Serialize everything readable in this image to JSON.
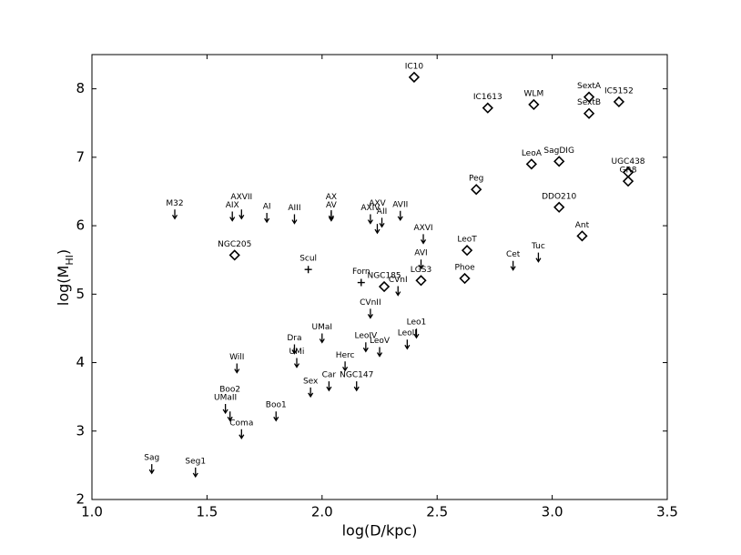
{
  "chart_data": {
    "type": "scatter",
    "xlabel": "log(D/kpc)",
    "ylabel": [
      "log(M",
      "HI",
      ")"
    ],
    "xlim": [
      1,
      3.5
    ],
    "ylim": [
      2,
      8.5
    ],
    "xticks": [
      {
        "value": 1,
        "label": "1.0"
      },
      {
        "value": 1.5,
        "label": "1.5"
      },
      {
        "value": 2,
        "label": "2.0"
      },
      {
        "value": 2.5,
        "label": "2.5"
      },
      {
        "value": 3,
        "label": "3.0"
      },
      {
        "value": 3.5,
        "label": "3.5"
      }
    ],
    "yticks": [
      2,
      3,
      4,
      5,
      6,
      7,
      8
    ],
    "color": "#000000",
    "points": [
      {
        "label": "IC10",
        "x": 2.4,
        "y": 8.17,
        "marker": "diamond"
      },
      {
        "label": "IC1613",
        "x": 2.72,
        "y": 7.72,
        "marker": "diamond"
      },
      {
        "label": "WLM",
        "x": 2.92,
        "y": 7.77,
        "marker": "diamond"
      },
      {
        "label": "SextA",
        "x": 3.16,
        "y": 7.88,
        "marker": "diamond"
      },
      {
        "label": "SextB",
        "x": 3.16,
        "y": 7.64,
        "marker": "diamond"
      },
      {
        "label": "IC5152",
        "x": 3.29,
        "y": 7.81,
        "marker": "diamond"
      },
      {
        "label": "LeoA",
        "x": 2.91,
        "y": 6.9,
        "marker": "diamond"
      },
      {
        "label": "SagDIG",
        "x": 3.03,
        "y": 6.94,
        "marker": "diamond"
      },
      {
        "label": "UGC438",
        "x": 3.33,
        "y": 6.78,
        "marker": "diamond"
      },
      {
        "label": "GR8",
        "x": 3.33,
        "y": 6.65,
        "marker": "diamond"
      },
      {
        "label": "Peg",
        "x": 2.67,
        "y": 6.53,
        "marker": "diamond"
      },
      {
        "label": "DDO210",
        "x": 3.03,
        "y": 6.27,
        "marker": "diamond"
      },
      {
        "label": "Ant",
        "x": 3.13,
        "y": 5.85,
        "marker": "diamond"
      },
      {
        "label": "NGC205",
        "x": 1.62,
        "y": 5.57,
        "marker": "diamond"
      },
      {
        "label": "LeoT",
        "x": 2.63,
        "y": 5.64,
        "marker": "diamond"
      },
      {
        "label": "Phoe",
        "x": 2.62,
        "y": 5.23,
        "marker": "diamond"
      },
      {
        "label": "LGS3",
        "x": 2.43,
        "y": 5.2,
        "marker": "diamond"
      },
      {
        "label": "NGC185",
        "x": 2.27,
        "y": 5.11,
        "marker": "diamond"
      },
      {
        "label": "Scul",
        "x": 1.94,
        "y": 5.36,
        "marker": "plus"
      },
      {
        "label": "Forn",
        "x": 2.17,
        "y": 5.17,
        "marker": "plus"
      },
      {
        "label": "M32",
        "x": 1.36,
        "y": 6.17,
        "marker": "limit"
      },
      {
        "label": "AIX",
        "x": 1.61,
        "y": 6.14,
        "marker": "limit"
      },
      {
        "label": "AXVII",
        "x": 1.65,
        "y": 6.17,
        "marker": "limit"
      },
      {
        "label": "AI",
        "x": 1.76,
        "y": 6.12,
        "marker": "limit"
      },
      {
        "label": "AIII",
        "x": 1.88,
        "y": 6.1,
        "marker": "limit"
      },
      {
        "label": "AV",
        "x": 2.04,
        "y": 6.14,
        "marker": "limit"
      },
      {
        "label": "AX",
        "x": 2.04,
        "y": 6.16,
        "marker": "limit"
      },
      {
        "label": "AXIV",
        "x": 2.21,
        "y": 6.1,
        "marker": "limit"
      },
      {
        "label": "AII",
        "x": 2.26,
        "y": 6.05,
        "marker": "limit"
      },
      {
        "label": "AXV",
        "x": 2.24,
        "y": 5.96,
        "marker": "limit"
      },
      {
        "label": "AVII",
        "x": 2.34,
        "y": 6.15,
        "marker": "limit"
      },
      {
        "label": "AXVI",
        "x": 2.44,
        "y": 5.81,
        "marker": "limit"
      },
      {
        "label": "AVI",
        "x": 2.43,
        "y": 5.44,
        "marker": "limit"
      },
      {
        "label": "CVnI",
        "x": 2.33,
        "y": 5.05,
        "marker": "limit"
      },
      {
        "label": "Cet",
        "x": 2.83,
        "y": 5.42,
        "marker": "limit"
      },
      {
        "label": "Tuc",
        "x": 2.94,
        "y": 5.54,
        "marker": "limit"
      },
      {
        "label": "CVnII",
        "x": 2.21,
        "y": 4.72,
        "marker": "limit"
      },
      {
        "label": "UMaI",
        "x": 2.0,
        "y": 4.36,
        "marker": "limit"
      },
      {
        "label": "Dra",
        "x": 1.88,
        "y": 4.2,
        "marker": "limit"
      },
      {
        "label": "UMi",
        "x": 1.89,
        "y": 4.0,
        "marker": "limit"
      },
      {
        "label": "LeoIV",
        "x": 2.19,
        "y": 4.23,
        "marker": "limit"
      },
      {
        "label": "LeoV",
        "x": 2.25,
        "y": 4.16,
        "marker": "limit"
      },
      {
        "label": "Leo1",
        "x": 2.41,
        "y": 4.43,
        "marker": "limit"
      },
      {
        "label": "LeoII",
        "x": 2.37,
        "y": 4.27,
        "marker": "limit"
      },
      {
        "label": "Herc",
        "x": 2.1,
        "y": 3.95,
        "marker": "limit"
      },
      {
        "label": "WilI",
        "x": 1.63,
        "y": 3.92,
        "marker": "limit"
      },
      {
        "label": "Sex",
        "x": 1.95,
        "y": 3.57,
        "marker": "limit"
      },
      {
        "label": "Car",
        "x": 2.03,
        "y": 3.66,
        "marker": "limit"
      },
      {
        "label": "NGC147",
        "x": 2.15,
        "y": 3.66,
        "marker": "limit"
      },
      {
        "label": "UMaII",
        "x": 1.58,
        "y": 3.33,
        "marker": "limit"
      },
      {
        "label": "Boo2",
        "x": 1.6,
        "y": 3.22,
        "marker": "limit"
      },
      {
        "label": "Boo1",
        "x": 1.8,
        "y": 3.22,
        "marker": "limit"
      },
      {
        "label": "Coma",
        "x": 1.65,
        "y": 2.96,
        "marker": "limit"
      },
      {
        "label": "Sag",
        "x": 1.26,
        "y": 2.45,
        "marker": "limit"
      },
      {
        "label": "Seg1",
        "x": 1.45,
        "y": 2.4,
        "marker": "limit"
      }
    ]
  }
}
